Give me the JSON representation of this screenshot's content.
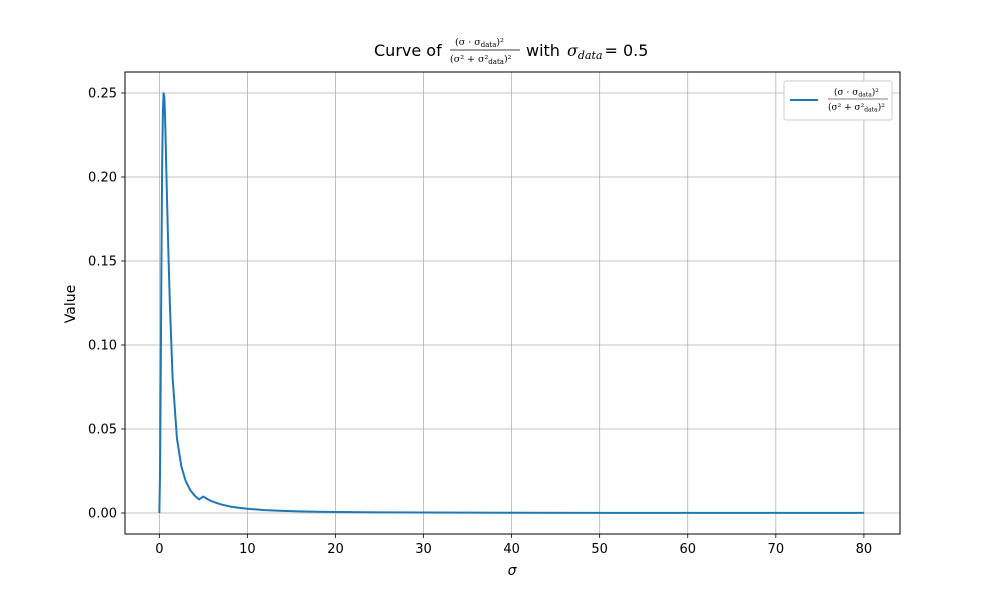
{
  "chart_data": {
    "type": "line",
    "title": {
      "prefix": "Curve of",
      "formula_numerator": "(σ · σ",
      "numerator_sub": "data",
      "numerator_close": ")²",
      "formula_denominator": "(σ² + σ²",
      "denominator_sub": "data",
      "denominator_close": ")²",
      "middle": "with",
      "sigma": "σ",
      "sigma_sub": "data",
      "equals_value": "= 0.5"
    },
    "xlabel": "σ",
    "ylabel": "Value",
    "xlim": [
      -3.9,
      84.1
    ],
    "ylim": [
      -0.0125,
      0.2625
    ],
    "xticks": [
      0,
      10,
      20,
      30,
      40,
      50,
      60,
      70,
      80
    ],
    "xtick_labels": [
      "0",
      "10",
      "20",
      "30",
      "40",
      "50",
      "60",
      "70",
      "80"
    ],
    "yticks": [
      0.0,
      0.05,
      0.1,
      0.15,
      0.2,
      0.25
    ],
    "ytick_labels": [
      "0.00",
      "0.05",
      "0.10",
      "0.15",
      "0.20",
      "0.25"
    ],
    "grid": true,
    "legend_position": "top-right",
    "sigma_data": 0.5,
    "series": [
      {
        "name": "(σ·σdata)² / (σ²+σ²data)²",
        "color": "#1f77b4",
        "x": [
          0,
          0.08,
          0.16,
          0.24,
          0.32,
          0.4,
          0.48,
          0.56,
          0.64,
          0.72,
          0.8,
          1,
          1.2,
          1.5,
          2,
          2.5,
          3,
          3.5,
          4,
          4.5,
          5,
          5.5,
          6,
          7,
          8,
          9,
          10,
          12,
          14,
          16,
          18,
          20,
          25,
          30,
          35,
          40,
          50,
          60,
          70,
          80
        ],
        "y": [
          0,
          0.0238,
          0.0832,
          0.1527,
          0.2074,
          0.2382,
          0.2499,
          0.2481,
          0.2373,
          0.2211,
          0.2022,
          0.16,
          0.1236,
          0.081,
          0.0443,
          0.0277,
          0.0189,
          0.0137,
          0.0104,
          0.0081,
          0.0098,
          0.0081,
          0.0069,
          0.0051,
          0.0039,
          0.0031,
          0.0025,
          0.00174,
          0.00128,
          0.00098,
          0.00077,
          0.00062,
          0.0004,
          0.00028,
          0.0002,
          0.00016,
          0.0001,
          7e-05,
          5e-05,
          4e-05
        ]
      }
    ]
  }
}
